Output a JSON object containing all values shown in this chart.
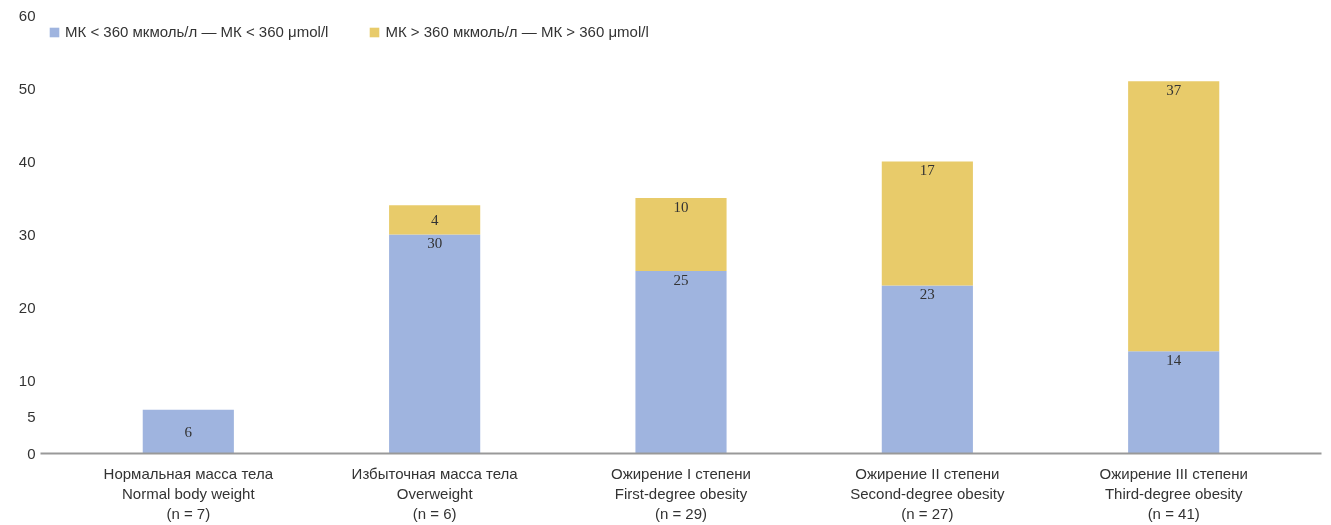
{
  "chart_data": {
    "type": "bar",
    "stacked": true,
    "categories": [
      "Нормальная масса тела\nNormal body weight\n(n = 7)",
      "Избыточная масса тела\nOverweight\n(n = 6)",
      "Ожирение I степени\nFirst-degree obesity\n(n = 29)",
      "Ожирение II степени\nSecond-degree obesity\n(n = 27)",
      "Ожирение III степени\nThird-degree obesity\n(n = 41)"
    ],
    "series": [
      {
        "name": "МК < 360 мкмоль/л — МК < 360 μmol/l",
        "color": "#9fb4df",
        "values": [
          6,
          30,
          25,
          23,
          14
        ]
      },
      {
        "name": "МК > 360 мкмоль/л — МК > 360 μmol/l",
        "color": "#e8cb6a",
        "values": [
          null,
          4,
          10,
          17,
          37
        ]
      }
    ],
    "ylim": [
      0,
      60
    ],
    "yticks": [
      0,
      5,
      10,
      20,
      30,
      40,
      50,
      60
    ],
    "data_labels": true,
    "grid": false,
    "legend": "top left"
  }
}
